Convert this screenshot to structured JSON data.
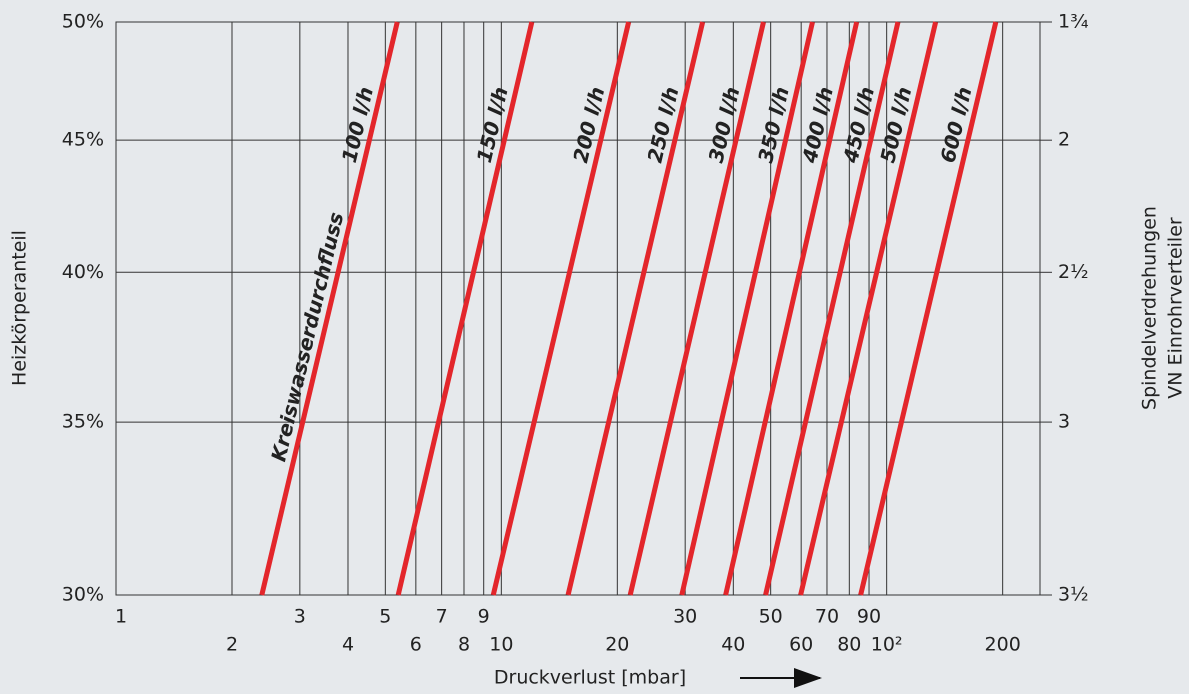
{
  "chart_data": {
    "type": "line",
    "xlabel": "Druckverlust [mbar]",
    "ylabel": "Heizkörperanteil",
    "y2label": [
      "Spindelverdrehungen",
      "VN Einrohrverteiler"
    ],
    "annotation": "Kreiswasserdurchfluss",
    "xlog": true,
    "ylog": true,
    "grid": true,
    "color": "#e3262b",
    "xlim": [
      1,
      250
    ],
    "xticks": [
      1,
      2,
      3,
      4,
      5,
      6,
      7,
      8,
      9,
      10,
      20,
      30,
      40,
      50,
      60,
      70,
      80,
      90,
      {
        "value": 100,
        "label": "10²"
      },
      200
    ],
    "ylim": [
      30,
      50
    ],
    "yticks": [
      {
        "value": 30,
        "label": "30%"
      },
      {
        "value": 35,
        "label": "35%"
      },
      {
        "value": 40,
        "label": "40%"
      },
      {
        "value": 45,
        "label": "45%"
      },
      {
        "value": 50,
        "label": "50%"
      }
    ],
    "y2ticks": [
      {
        "value": 3.5,
        "label": "3½"
      },
      3,
      {
        "value": 2.5,
        "label": "2½"
      },
      2,
      {
        "value": 1.75,
        "label": "1¾"
      }
    ],
    "series": [
      {
        "name": "100 l/h",
        "x": [
          2.39,
          5.37
        ],
        "values": [
          30,
          50
        ]
      },
      {
        "name": "150 l/h",
        "x": [
          5.4,
          12.0
        ],
        "values": [
          30,
          50
        ]
      },
      {
        "name": "200 l/h",
        "x": [
          9.53,
          21.4
        ],
        "values": [
          30,
          50
        ]
      },
      {
        "name": "250 l/h",
        "x": [
          14.9,
          33.3
        ],
        "values": [
          30,
          50
        ]
      },
      {
        "name": "300 l/h",
        "x": [
          21.6,
          47.9
        ],
        "values": [
          30,
          50
        ]
      },
      {
        "name": "350 l/h",
        "x": [
          29.4,
          64.2
        ],
        "values": [
          30,
          50
        ]
      },
      {
        "name": "400 l/h",
        "x": [
          38.2,
          83.6
        ],
        "values": [
          30,
          50
        ]
      },
      {
        "name": "450 l/h",
        "x": [
          48.5,
          107
        ],
        "values": [
          30,
          50
        ]
      },
      {
        "name": "500 l/h",
        "x": [
          59.8,
          134
        ],
        "values": [
          30,
          50
        ]
      },
      {
        "name": "600 l/h",
        "x": [
          85.6,
          192
        ],
        "values": [
          30,
          50
        ]
      }
    ]
  }
}
